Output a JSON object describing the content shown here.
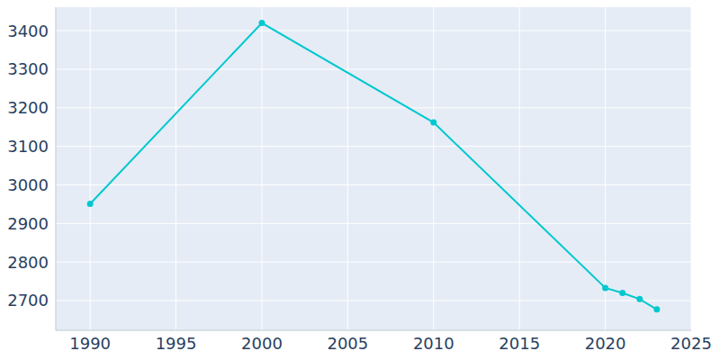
{
  "chart_data": {
    "type": "line",
    "x": [
      1990,
      2000,
      2010,
      2020,
      2021,
      2022,
      2023
    ],
    "values": [
      2951,
      3420,
      3162,
      2733,
      2720,
      2704,
      2677
    ],
    "color": "#00c8cf",
    "xlim": [
      1988,
      2025
    ],
    "xticks": [
      1990,
      1995,
      2000,
      2005,
      2010,
      2015,
      2020,
      2025
    ],
    "ylim": [
      2623,
      3468
    ],
    "yticks": [
      2700,
      2800,
      2900,
      3000,
      3100,
      3200,
      3300,
      3400
    ],
    "grid": true,
    "marker": "circle"
  }
}
